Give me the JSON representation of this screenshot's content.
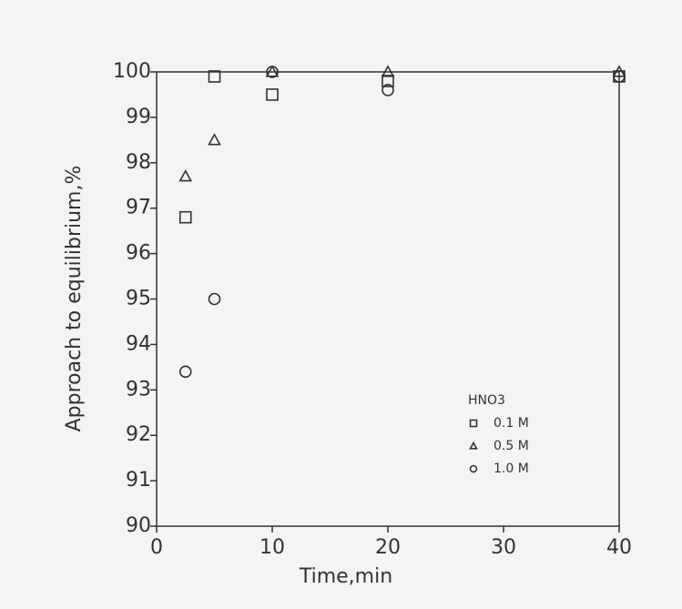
{
  "chart_data": {
    "type": "scatter",
    "x_label": "Time,min",
    "y_label": "Approach to equilibrium,%",
    "xlim": [
      0,
      40
    ],
    "xticks": [
      0,
      10,
      20,
      30,
      40
    ],
    "ylim": [
      90,
      100
    ],
    "yticks": [
      90,
      91,
      92,
      93,
      94,
      95,
      96,
      97,
      98,
      99,
      100
    ],
    "grid": false,
    "legend_title": "HNO3",
    "legend": "lower right",
    "series": [
      {
        "name": "0.1 M",
        "marker": "square",
        "color": "#333333",
        "x": [
          2.5,
          5,
          10,
          20,
          40
        ],
        "values": [
          96.8,
          99.9,
          99.5,
          99.8,
          99.9
        ]
      },
      {
        "name": "0.5 M",
        "marker": "triangle",
        "color": "#333333",
        "x": [
          2.5,
          5,
          10,
          20,
          40
        ],
        "values": [
          97.7,
          98.5,
          100,
          100,
          100
        ]
      },
      {
        "name": "1.0 M",
        "marker": "circle",
        "color": "#333333",
        "x": [
          2.5,
          5,
          10,
          20,
          40
        ],
        "values": [
          93.4,
          95.0,
          100,
          99.6,
          99.9
        ]
      }
    ]
  }
}
